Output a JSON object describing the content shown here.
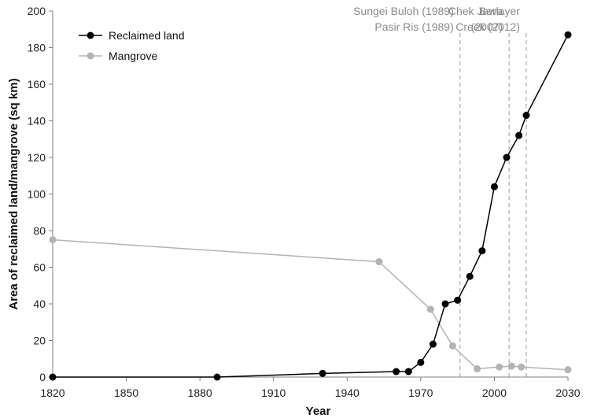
{
  "chart_data": {
    "type": "line",
    "title": "",
    "xlabel": "Year",
    "ylabel": "Area of reclaimed land/mangrove (sq km)",
    "xlim": [
      1820,
      2030
    ],
    "ylim": [
      0,
      200
    ],
    "x_ticks": [
      1820,
      1850,
      1880,
      1910,
      1940,
      1970,
      2000,
      2030
    ],
    "y_ticks": [
      0,
      20,
      40,
      60,
      80,
      100,
      120,
      140,
      160,
      180,
      200
    ],
    "grid": false,
    "legend_position": "top-left",
    "series": [
      {
        "name": "Reclaimed land",
        "color": "#000000",
        "points": [
          {
            "x": 1820,
            "y": 0
          },
          {
            "x": 1887,
            "y": 0
          },
          {
            "x": 1930,
            "y": 2
          },
          {
            "x": 1960,
            "y": 3
          },
          {
            "x": 1965,
            "y": 3
          },
          {
            "x": 1970,
            "y": 8
          },
          {
            "x": 1975,
            "y": 18
          },
          {
            "x": 1980,
            "y": 40
          },
          {
            "x": 1985,
            "y": 42
          },
          {
            "x": 1990,
            "y": 55
          },
          {
            "x": 1995,
            "y": 69
          },
          {
            "x": 2000,
            "y": 104
          },
          {
            "x": 2005,
            "y": 120
          },
          {
            "x": 2010,
            "y": 132
          },
          {
            "x": 2013,
            "y": 143
          },
          {
            "x": 2030,
            "y": 187
          }
        ]
      },
      {
        "name": "Mangrove",
        "color": "#b3b3b3",
        "points": [
          {
            "x": 1820,
            "y": 75
          },
          {
            "x": 1953,
            "y": 63
          },
          {
            "x": 1974,
            "y": 37
          },
          {
            "x": 1983,
            "y": 17
          },
          {
            "x": 1993,
            "y": 4.5
          },
          {
            "x": 2002,
            "y": 5.5
          },
          {
            "x": 2007,
            "y": 6
          },
          {
            "x": 2011,
            "y": 5.5
          },
          {
            "x": 2030,
            "y": 4
          }
        ]
      }
    ],
    "annotations": [
      {
        "x": 1986,
        "label": [
          "Sungei Buloh (1989)",
          "Pasir Ris (1989)"
        ]
      },
      {
        "x": 2006,
        "label": [
          "Chek Jawa",
          "(2007)"
        ]
      },
      {
        "x": 2013,
        "label": [
          "Berlayer",
          "Creek (2012)"
        ]
      }
    ]
  }
}
